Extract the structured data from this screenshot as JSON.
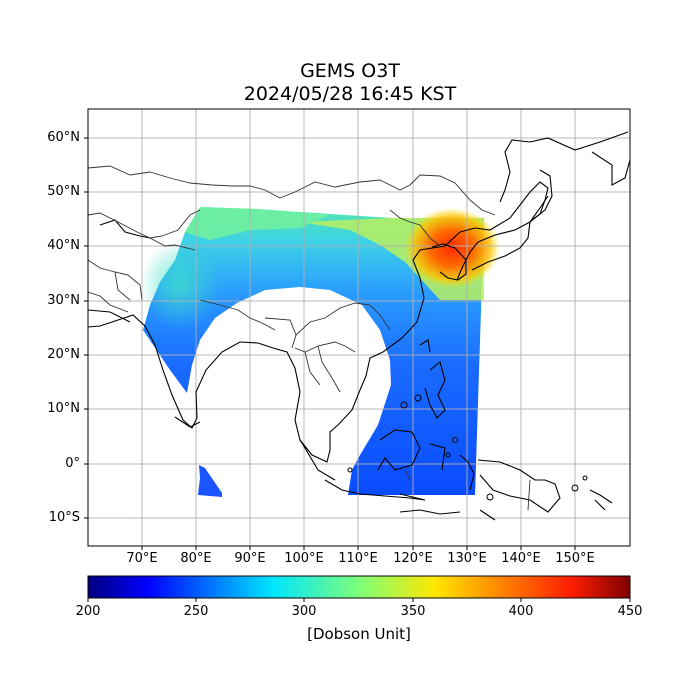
{
  "title": "GEMS O3T",
  "subtitle": "2024/05/28 16:45 KST",
  "map": {
    "lon_range": [
      60,
      160
    ],
    "lat_range": [
      -15,
      65
    ],
    "lat_ticks": [
      {
        "value": 60,
        "label": "60°N"
      },
      {
        "value": 50,
        "label": "50°N"
      },
      {
        "value": 40,
        "label": "40°N"
      },
      {
        "value": 30,
        "label": "30°N"
      },
      {
        "value": 20,
        "label": "20°N"
      },
      {
        "value": 10,
        "label": "10°N"
      },
      {
        "value": 0,
        "label": "0°"
      },
      {
        "value": -10,
        "label": "10°S"
      }
    ],
    "lon_ticks": [
      {
        "value": 70,
        "label": "70°E"
      },
      {
        "value": 80,
        "label": "80°E"
      },
      {
        "value": 90,
        "label": "90°E"
      },
      {
        "value": 100,
        "label": "100°E"
      },
      {
        "value": 110,
        "label": "110°E"
      },
      {
        "value": 120,
        "label": "120°E"
      },
      {
        "value": 130,
        "label": "130°E"
      },
      {
        "value": 140,
        "label": "140°E"
      },
      {
        "value": 150,
        "label": "150°E"
      }
    ],
    "gridlines": true,
    "variable": "Total column ozone",
    "colormap": "jet"
  },
  "colorbar": {
    "min": 200,
    "max": 450,
    "ticks": [
      "200",
      "250",
      "300",
      "350",
      "400",
      "450"
    ],
    "label": "[Dobson Unit]"
  }
}
